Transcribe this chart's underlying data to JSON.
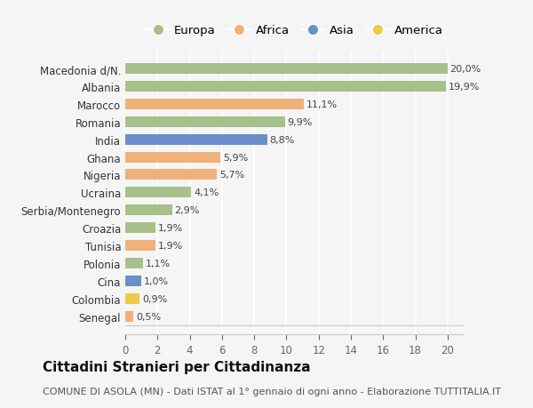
{
  "labels": [
    "Macedonia d/N.",
    "Albania",
    "Marocco",
    "Romania",
    "India",
    "Ghana",
    "Nigeria",
    "Ucraina",
    "Serbia/Montenegro",
    "Croazia",
    "Tunisia",
    "Polonia",
    "Cina",
    "Colombia",
    "Senegal"
  ],
  "values": [
    20.0,
    19.9,
    11.1,
    9.9,
    8.8,
    5.9,
    5.7,
    4.1,
    2.9,
    1.9,
    1.9,
    1.1,
    1.0,
    0.9,
    0.5
  ],
  "value_labels": [
    "20,0%",
    "19,9%",
    "11,1%",
    "9,9%",
    "8,8%",
    "5,9%",
    "5,7%",
    "4,1%",
    "2,9%",
    "1,9%",
    "1,9%",
    "1,1%",
    "1,0%",
    "0,9%",
    "0,5%"
  ],
  "continents": [
    "Europa",
    "Europa",
    "Africa",
    "Europa",
    "Asia",
    "Africa",
    "Africa",
    "Europa",
    "Europa",
    "Europa",
    "Africa",
    "Europa",
    "Asia",
    "America",
    "Africa"
  ],
  "colors": {
    "Europa": "#a8c08a",
    "Africa": "#f0b07a",
    "Asia": "#6b8fc8",
    "America": "#f0c84a"
  },
  "legend_order": [
    "Europa",
    "Africa",
    "Asia",
    "America"
  ],
  "xlim": [
    0,
    21
  ],
  "xticks": [
    0,
    2,
    4,
    6,
    8,
    10,
    12,
    14,
    16,
    18,
    20
  ],
  "title": "Cittadini Stranieri per Cittadinanza",
  "subtitle": "COMUNE DI ASOLA (MN) - Dati ISTAT al 1° gennaio di ogni anno - Elaborazione TUTTITALIA.IT",
  "bg_color": "#f5f5f5",
  "grid_color": "#ffffff",
  "bar_height": 0.6,
  "title_fontsize": 11,
  "subtitle_fontsize": 8,
  "label_fontsize": 8.5,
  "tick_fontsize": 8.5,
  "value_fontsize": 8
}
